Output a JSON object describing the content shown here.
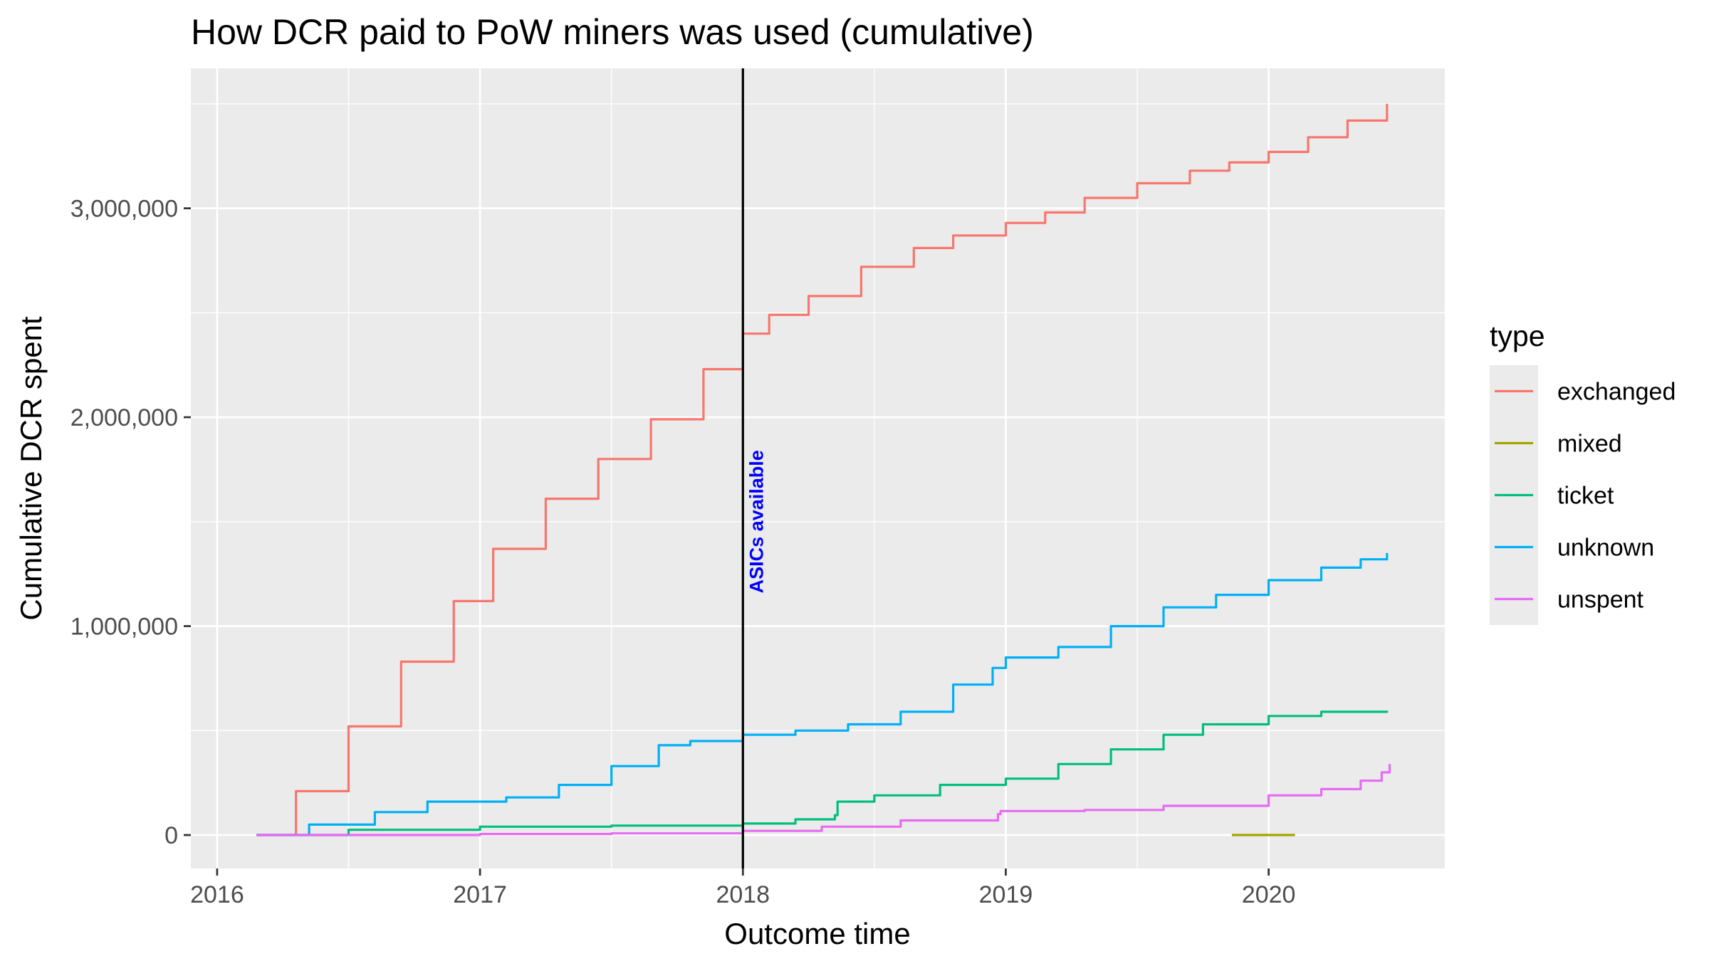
{
  "chart_data": {
    "type": "line",
    "title": "How DCR paid to PoW miners was used (cumulative)",
    "xlabel": "Outcome time",
    "ylabel": "Cumulative DCR spent",
    "xlim": [
      2015.9,
      2020.67
    ],
    "ylim": [
      -160000,
      3670000
    ],
    "x_ticks": [
      2016,
      2017,
      2018,
      2019,
      2020
    ],
    "x_tick_labels": [
      "2016",
      "2017",
      "2018",
      "2019",
      "2020"
    ],
    "y_ticks": [
      0,
      1000000,
      2000000,
      3000000
    ],
    "y_tick_labels": [
      "0",
      "1,000,000",
      "2,000,000",
      "3,000,000"
    ],
    "grid": true,
    "legend": {
      "title": "type",
      "placement": "right"
    },
    "annotations": [
      {
        "type": "vline",
        "x": 2018.0,
        "color": "#000000"
      },
      {
        "type": "text",
        "x": 2018.05,
        "y": 1500000,
        "text": "ASICs available",
        "color": "#0000ff",
        "rotation": -90
      }
    ],
    "series": [
      {
        "name": "exchanged",
        "color": "#F8766D",
        "points": [
          [
            2016.15,
            0
          ],
          [
            2016.3,
            210000
          ],
          [
            2016.5,
            520000
          ],
          [
            2016.7,
            830000
          ],
          [
            2016.9,
            1120000
          ],
          [
            2017.05,
            1370000
          ],
          [
            2017.25,
            1610000
          ],
          [
            2017.45,
            1800000
          ],
          [
            2017.65,
            1990000
          ],
          [
            2017.85,
            2230000
          ],
          [
            2018.0,
            2400000
          ],
          [
            2018.1,
            2490000
          ],
          [
            2018.25,
            2580000
          ],
          [
            2018.45,
            2720000
          ],
          [
            2018.65,
            2810000
          ],
          [
            2018.8,
            2870000
          ],
          [
            2019.0,
            2930000
          ],
          [
            2019.15,
            2980000
          ],
          [
            2019.3,
            3050000
          ],
          [
            2019.5,
            3120000
          ],
          [
            2019.7,
            3180000
          ],
          [
            2019.85,
            3220000
          ],
          [
            2020.0,
            3270000
          ],
          [
            2020.15,
            3340000
          ],
          [
            2020.3,
            3420000
          ],
          [
            2020.45,
            3500000
          ]
        ]
      },
      {
        "name": "mixed",
        "color": "#A3A500",
        "points": [
          [
            2019.86,
            0
          ],
          [
            2020.1,
            0
          ]
        ]
      },
      {
        "name": "ticket",
        "color": "#00BF7D",
        "points": [
          [
            2016.15,
            0
          ],
          [
            2016.5,
            25000
          ],
          [
            2017.0,
            40000
          ],
          [
            2017.5,
            45000
          ],
          [
            2018.0,
            55000
          ],
          [
            2018.2,
            75000
          ],
          [
            2018.35,
            95000
          ],
          [
            2018.36,
            160000
          ],
          [
            2018.5,
            190000
          ],
          [
            2018.75,
            240000
          ],
          [
            2019.0,
            270000
          ],
          [
            2019.2,
            340000
          ],
          [
            2019.4,
            410000
          ],
          [
            2019.6,
            480000
          ],
          [
            2019.75,
            530000
          ],
          [
            2020.0,
            570000
          ],
          [
            2020.2,
            590000
          ],
          [
            2020.45,
            595000
          ]
        ]
      },
      {
        "name": "unknown",
        "color": "#00B0F6",
        "points": [
          [
            2016.15,
            0
          ],
          [
            2016.35,
            50000
          ],
          [
            2016.6,
            110000
          ],
          [
            2016.8,
            160000
          ],
          [
            2017.1,
            180000
          ],
          [
            2017.3,
            240000
          ],
          [
            2017.5,
            330000
          ],
          [
            2017.68,
            430000
          ],
          [
            2017.8,
            450000
          ],
          [
            2018.0,
            480000
          ],
          [
            2018.2,
            500000
          ],
          [
            2018.4,
            530000
          ],
          [
            2018.6,
            590000
          ],
          [
            2018.8,
            720000
          ],
          [
            2018.95,
            800000
          ],
          [
            2019.0,
            850000
          ],
          [
            2019.2,
            900000
          ],
          [
            2019.4,
            1000000
          ],
          [
            2019.6,
            1090000
          ],
          [
            2019.8,
            1150000
          ],
          [
            2020.0,
            1220000
          ],
          [
            2020.2,
            1280000
          ],
          [
            2020.35,
            1320000
          ],
          [
            2020.45,
            1350000
          ]
        ]
      },
      {
        "name": "unspent",
        "color": "#E76BF3",
        "points": [
          [
            2016.15,
            0
          ],
          [
            2017.0,
            5000
          ],
          [
            2017.5,
            8000
          ],
          [
            2018.0,
            20000
          ],
          [
            2018.3,
            40000
          ],
          [
            2018.6,
            70000
          ],
          [
            2018.97,
            100000
          ],
          [
            2018.98,
            115000
          ],
          [
            2019.3,
            120000
          ],
          [
            2019.6,
            140000
          ],
          [
            2020.0,
            190000
          ],
          [
            2020.2,
            220000
          ],
          [
            2020.35,
            260000
          ],
          [
            2020.43,
            300000
          ],
          [
            2020.46,
            340000
          ]
        ]
      }
    ]
  }
}
